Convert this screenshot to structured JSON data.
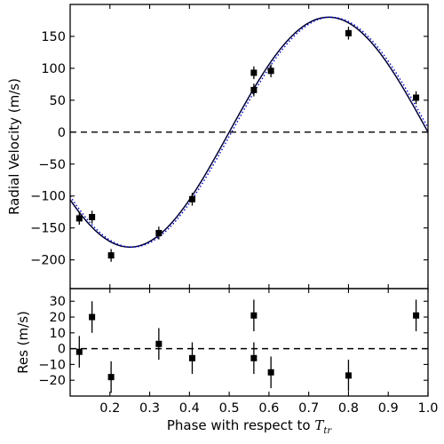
{
  "chart_data": [
    {
      "type": "scatter",
      "panel": "radial-velocity",
      "xlim": [
        0.1,
        1.0
      ],
      "ylim": [
        -245,
        200
      ],
      "ylabel": "Radial Velocity (m/s)",
      "yticks": [
        150,
        100,
        50,
        0,
        -50,
        -100,
        -150,
        -200
      ],
      "ytick_labels": [
        "150",
        "100",
        "50",
        "0",
        "−50",
        "−100",
        "−150",
        "−200"
      ],
      "grid": false,
      "zero_line": "dashed",
      "model_curves": [
        {
          "style": "solid",
          "color": "#000033",
          "amplitude": 180,
          "phase_shift": 0.0
        },
        {
          "style": "dotted",
          "color": "#0000cc",
          "amplitude": 180,
          "phase_shift": 0.006
        }
      ],
      "points": [
        {
          "x": 0.123,
          "y": -135,
          "err": 10
        },
        {
          "x": 0.155,
          "y": -133,
          "err": 10
        },
        {
          "x": 0.203,
          "y": -193,
          "err": 10
        },
        {
          "x": 0.323,
          "y": -158,
          "err": 10
        },
        {
          "x": 0.407,
          "y": -105,
          "err": 10
        },
        {
          "x": 0.562,
          "y": 93,
          "err": 10
        },
        {
          "x": 0.562,
          "y": 66,
          "err": 10
        },
        {
          "x": 0.605,
          "y": 96,
          "err": 10
        },
        {
          "x": 0.8,
          "y": 155,
          "err": 10
        },
        {
          "x": 0.97,
          "y": 54,
          "err": 10
        }
      ]
    },
    {
      "type": "scatter",
      "panel": "residuals",
      "xlim": [
        0.1,
        1.0
      ],
      "ylim": [
        -30,
        38
      ],
      "xlabel": "Phase with respect to ",
      "xlabel_math": "T",
      "xlabel_sub": "tr",
      "ylabel": "Res (m/s)",
      "xticks": [
        0.2,
        0.3,
        0.4,
        0.5,
        0.6,
        0.7,
        0.8,
        0.9,
        1.0
      ],
      "xtick_labels": [
        "0.2",
        "0.3",
        "0.4",
        "0.5",
        "0.6",
        "0.7",
        "0.8",
        "0.9",
        "1.0"
      ],
      "yticks": [
        30,
        20,
        10,
        0,
        -10,
        -20
      ],
      "ytick_labels": [
        "30",
        "20",
        "10",
        "0",
        "−10",
        "−20"
      ],
      "grid": false,
      "zero_line": "dashed",
      "points": [
        {
          "x": 0.123,
          "y": -2,
          "err": 10
        },
        {
          "x": 0.155,
          "y": 20,
          "err": 10
        },
        {
          "x": 0.203,
          "y": -18,
          "err": 10
        },
        {
          "x": 0.323,
          "y": 3,
          "err": 10
        },
        {
          "x": 0.407,
          "y": -6,
          "err": 10
        },
        {
          "x": 0.562,
          "y": 21,
          "err": 10
        },
        {
          "x": 0.562,
          "y": -6,
          "err": 10
        },
        {
          "x": 0.605,
          "y": -15,
          "err": 10
        },
        {
          "x": 0.8,
          "y": -17,
          "err": 10
        },
        {
          "x": 0.97,
          "y": 21,
          "err": 10
        }
      ]
    }
  ]
}
